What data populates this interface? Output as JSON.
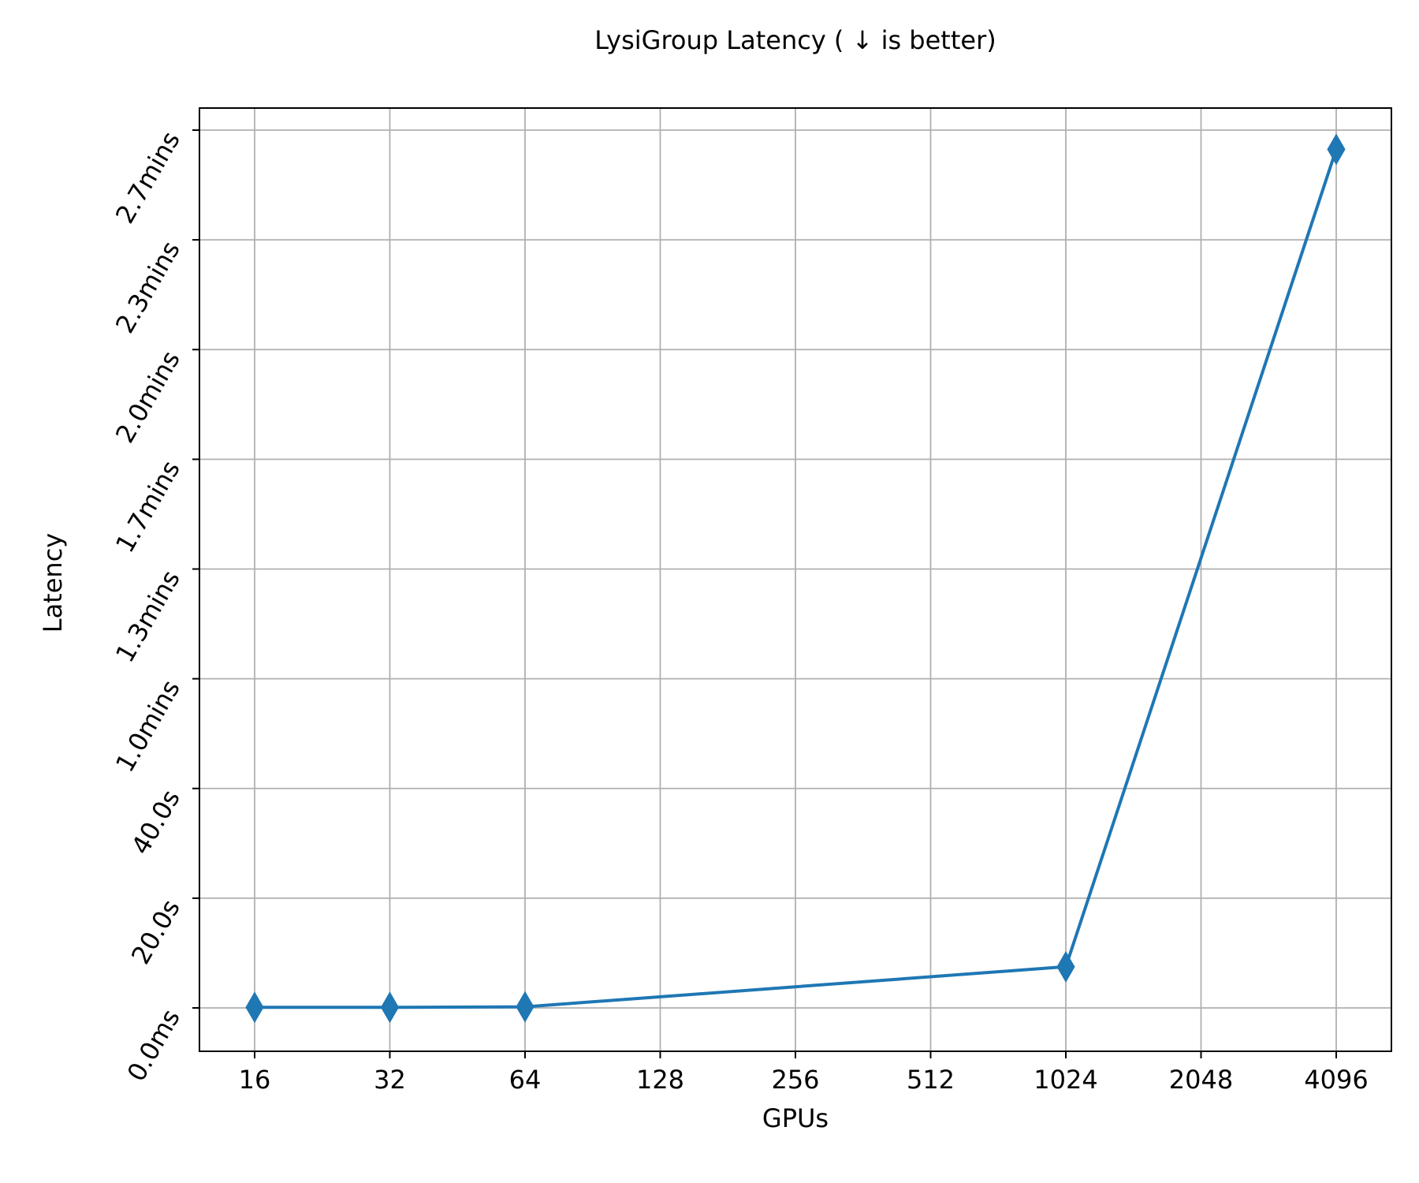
{
  "chart_data": {
    "type": "line",
    "title": "LysiGroup Latency ( ↓  is better)",
    "xlabel": "GPUs",
    "ylabel": "Latency",
    "x_scale": "log2",
    "x_ticks": [
      16,
      32,
      64,
      128,
      256,
      512,
      1024,
      2048,
      4096
    ],
    "x_tick_labels": [
      "16",
      "32",
      "64",
      "128",
      "256",
      "512",
      "1024",
      "2048",
      "4096"
    ],
    "xlim": [
      16,
      4096
    ],
    "y_unit": "seconds",
    "y_ticks": [
      0,
      20,
      40,
      60,
      80,
      100,
      120,
      140,
      160
    ],
    "y_tick_labels": [
      "0.0ms",
      "20.0s",
      "40.0s",
      "1.0mins",
      "1.3mins",
      "1.7mins",
      "2.0mins",
      "2.3mins",
      "2.7mins"
    ],
    "ylim": [
      0,
      160
    ],
    "grid": true,
    "series": [
      {
        "x": [
          16,
          32,
          64,
          1024,
          4096
        ],
        "y": [
          0.1,
          0.1,
          0.2,
          7.5,
          156.5
        ],
        "color": "#1f77b4",
        "marker": "diamond"
      }
    ]
  }
}
